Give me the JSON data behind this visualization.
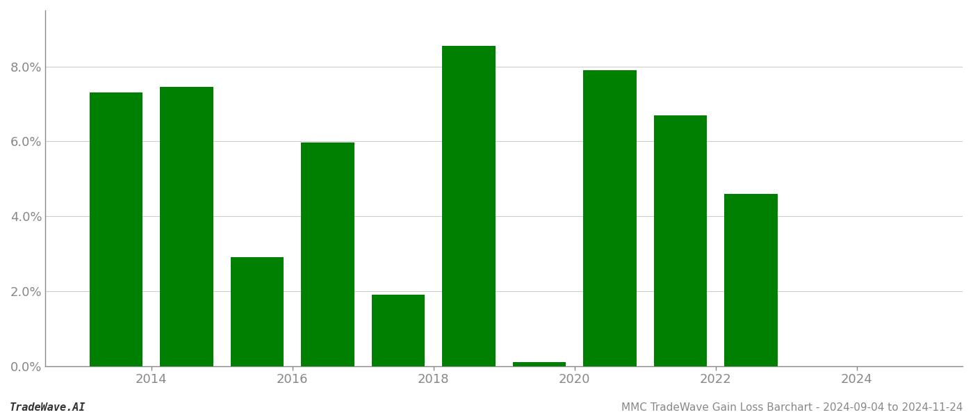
{
  "bar_positions": [
    1,
    2,
    3,
    4,
    5,
    6,
    7,
    8,
    9,
    10,
    11,
    12
  ],
  "values": [
    0.073,
    0.0745,
    0.029,
    0.0597,
    0.019,
    0.0855,
    0.001,
    0.079,
    0.067,
    0.046,
    null,
    null
  ],
  "bar_color": "#008000",
  "background_color": "#ffffff",
  "ylim": [
    0,
    0.095
  ],
  "yticks": [
    0.0,
    0.02,
    0.04,
    0.06,
    0.08
  ],
  "xtick_positions": [
    1.5,
    3.5,
    5.5,
    7.5,
    9.5,
    11.5
  ],
  "xtick_labels": [
    "2014",
    "2016",
    "2018",
    "2020",
    "2022",
    "2024"
  ],
  "xlim": [
    0.0,
    13.0
  ],
  "footer_left": "TradeWave.AI",
  "footer_right": "MMC TradeWave Gain Loss Barchart - 2024-09-04 to 2024-11-24",
  "grid_color": "#cccccc",
  "axis_color": "#888888",
  "text_color": "#888888",
  "bar_width": 0.75
}
